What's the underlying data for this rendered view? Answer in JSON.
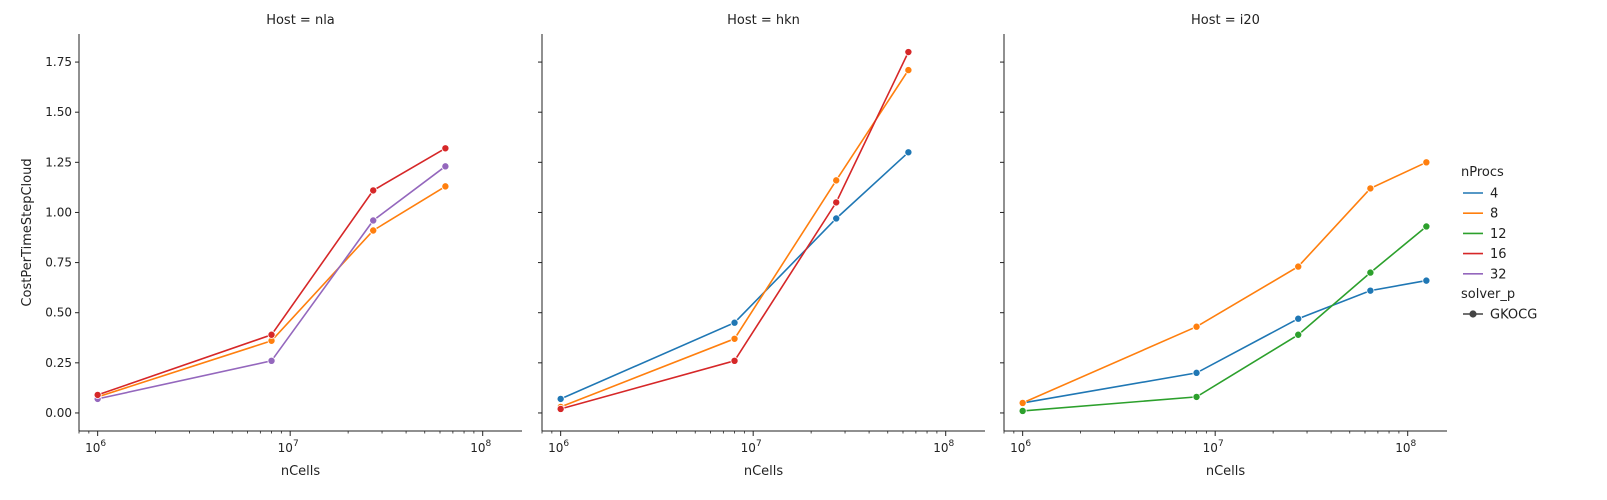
{
  "chart_data": {
    "type": "line",
    "xlabel": "nCells",
    "ylabel": "CostPerTimeStepCloud",
    "xscale": "log",
    "xlim": [
      800000,
      160000000
    ],
    "ylim": [
      -0.09,
      1.89
    ],
    "yticks": [
      "0.00",
      "0.25",
      "0.50",
      "0.75",
      "1.00",
      "1.25",
      "1.50",
      "1.75"
    ],
    "ytick_values": [
      0,
      0.25,
      0.5,
      0.75,
      1.0,
      1.25,
      1.5,
      1.75
    ],
    "xticks": [
      {
        "base": "10",
        "exp": "6",
        "value": 1000000
      },
      {
        "base": "10",
        "exp": "7",
        "value": 10000000
      },
      {
        "base": "10",
        "exp": "8",
        "value": 100000000
      }
    ],
    "grid": false,
    "legend_position": "right",
    "legend": {
      "hue_title": "nProcs",
      "hue_entries": [
        {
          "label": "4",
          "color": "#1f77b4"
        },
        {
          "label": "8",
          "color": "#ff7f0e"
        },
        {
          "label": "12",
          "color": "#2ca02c"
        },
        {
          "label": "16",
          "color": "#d62728"
        },
        {
          "label": "32",
          "color": "#9467bd"
        }
      ],
      "style_title": "solver_p",
      "style_entries": [
        {
          "label": "GKOCG",
          "color": "#444444"
        }
      ]
    },
    "panels": [
      {
        "title": "Host = nla",
        "series": [
          {
            "name": "8",
            "color": "#ff7f0e",
            "x": [
              1000000,
              8000000,
              27000000,
              64000000
            ],
            "y": [
              0.08,
              0.36,
              0.91,
              1.13
            ]
          },
          {
            "name": "32",
            "color": "#9467bd",
            "x": [
              1000000,
              8000000,
              27000000,
              64000000
            ],
            "y": [
              0.07,
              0.26,
              0.96,
              1.23
            ]
          },
          {
            "name": "16",
            "color": "#d62728",
            "x": [
              1000000,
              8000000,
              27000000,
              64000000
            ],
            "y": [
              0.09,
              0.39,
              1.11,
              1.32
            ]
          }
        ]
      },
      {
        "title": "Host = hkn",
        "series": [
          {
            "name": "4",
            "color": "#1f77b4",
            "x": [
              1000000,
              8000000,
              27000000,
              64000000
            ],
            "y": [
              0.07,
              0.45,
              0.97,
              1.3
            ]
          },
          {
            "name": "8",
            "color": "#ff7f0e",
            "x": [
              1000000,
              8000000,
              27000000,
              64000000
            ],
            "y": [
              0.03,
              0.37,
              1.16,
              1.71
            ]
          },
          {
            "name": "16",
            "color": "#d62728",
            "x": [
              1000000,
              8000000,
              27000000,
              64000000
            ],
            "y": [
              0.02,
              0.26,
              1.05,
              1.8
            ]
          }
        ]
      },
      {
        "title": "Host = i20",
        "series": [
          {
            "name": "4",
            "color": "#1f77b4",
            "x": [
              1000000,
              8000000,
              27000000,
              64000000,
              125000000
            ],
            "y": [
              0.05,
              0.2,
              0.47,
              0.61,
              0.66
            ]
          },
          {
            "name": "12",
            "color": "#2ca02c",
            "x": [
              1000000,
              8000000,
              27000000,
              64000000,
              125000000
            ],
            "y": [
              0.01,
              0.08,
              0.39,
              0.7,
              0.93
            ]
          },
          {
            "name": "8",
            "color": "#ff7f0e",
            "x": [
              1000000,
              8000000,
              27000000,
              64000000,
              125000000
            ],
            "y": [
              0.05,
              0.43,
              0.73,
              1.12,
              1.25
            ]
          }
        ]
      }
    ]
  }
}
